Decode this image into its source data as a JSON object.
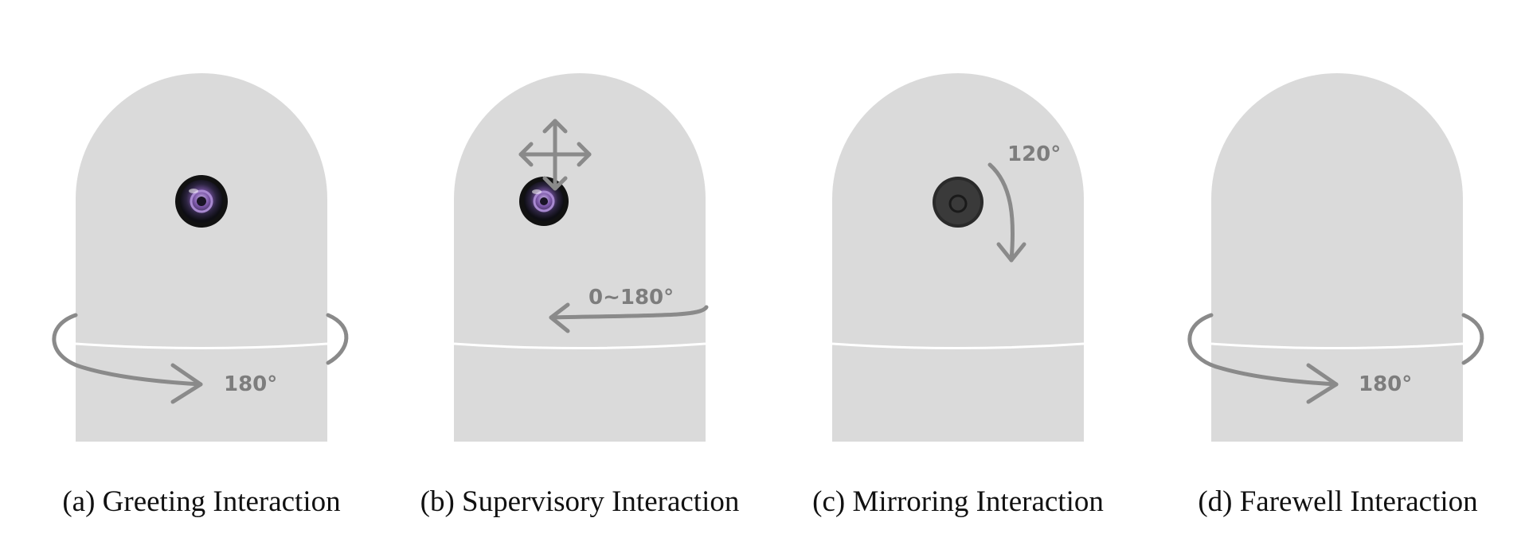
{
  "panels": [
    {
      "caption": "(a) Greeting Interaction",
      "angle_label": "180°",
      "camera": "lens-camera-icon",
      "motion": "horizontal-rotation-arrow-icon"
    },
    {
      "caption": "(b) Supervisory Interaction",
      "angle_label": "0~180°",
      "camera": "lens-camera-icon",
      "motion": "move-cross-arrows-icon"
    },
    {
      "caption": "(c) Mirroring Interaction",
      "angle_label": "120°",
      "camera": "camera-back-icon",
      "motion": "tilt-arrow-icon"
    },
    {
      "caption": "(d) Farewell Interaction",
      "angle_label": "180°",
      "camera": "none",
      "motion": "horizontal-rotation-arrow-icon"
    }
  ],
  "colors": {
    "robot_body": "#dadada",
    "arrow": "#8a8a8a",
    "seam": "#ffffff",
    "lens_purple": "#6b4a8f"
  }
}
